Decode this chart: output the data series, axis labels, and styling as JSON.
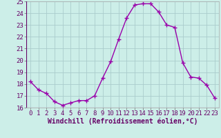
{
  "x": [
    0,
    1,
    2,
    3,
    4,
    5,
    6,
    7,
    8,
    9,
    10,
    11,
    12,
    13,
    14,
    15,
    16,
    17,
    18,
    19,
    20,
    21,
    22,
    23
  ],
  "y": [
    18.2,
    17.5,
    17.2,
    16.5,
    16.2,
    16.4,
    16.6,
    16.6,
    17.0,
    18.5,
    19.9,
    21.8,
    23.6,
    24.7,
    24.8,
    24.8,
    24.1,
    23.0,
    22.8,
    19.8,
    18.6,
    18.5,
    17.9,
    16.8
  ],
  "line_color": "#9900aa",
  "marker": "+",
  "markersize": 5,
  "linewidth": 1.0,
  "xlabel": "Windchill (Refroidissement éolien,°C)",
  "xlabel_fontsize": 7,
  "xlim": [
    -0.5,
    23.5
  ],
  "ylim": [
    16,
    25
  ],
  "yticks": [
    16,
    17,
    18,
    19,
    20,
    21,
    22,
    23,
    24,
    25
  ],
  "xticks": [
    0,
    1,
    2,
    3,
    4,
    5,
    6,
    7,
    8,
    9,
    10,
    11,
    12,
    13,
    14,
    15,
    16,
    17,
    18,
    19,
    20,
    21,
    22,
    23
  ],
  "background_color": "#cceee8",
  "grid_color": "#aacccc",
  "tick_fontsize": 6.5,
  "spine_color": "#aaaaaa"
}
